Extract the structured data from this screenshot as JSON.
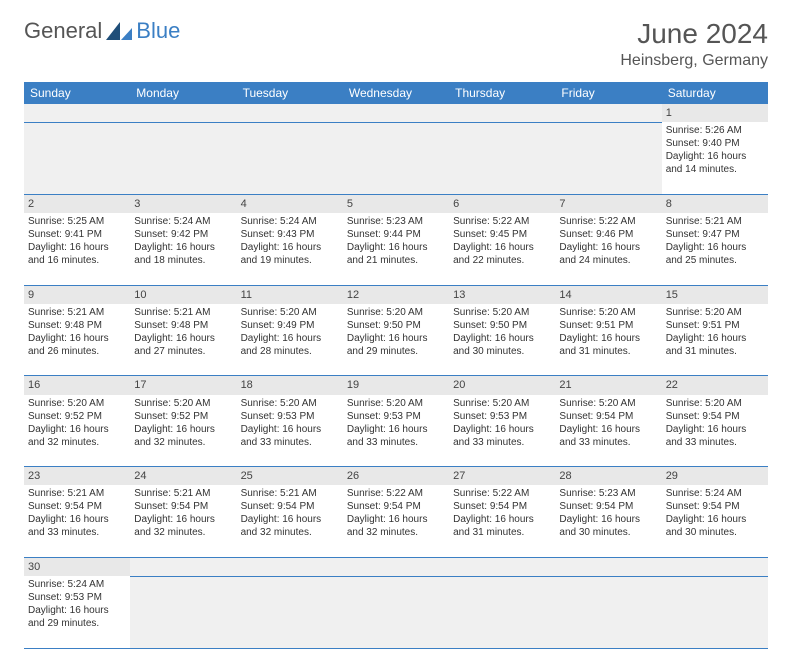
{
  "logo": {
    "textA": "General",
    "textB": "Blue"
  },
  "title": "June 2024",
  "location": "Heinsberg, Germany",
  "colors": {
    "header_bg": "#3b7fc4",
    "header_text": "#ffffff",
    "daynum_bg": "#e8e8e8",
    "empty_bg": "#f0f0f0",
    "border": "#3b7fc4",
    "body_text": "#333333"
  },
  "dayNames": [
    "Sunday",
    "Monday",
    "Tuesday",
    "Wednesday",
    "Thursday",
    "Friday",
    "Saturday"
  ],
  "weeks": [
    [
      null,
      null,
      null,
      null,
      null,
      null,
      {
        "n": "1",
        "sr": "5:26 AM",
        "ss": "9:40 PM",
        "dl": "16 hours and 14 minutes."
      }
    ],
    [
      {
        "n": "2",
        "sr": "5:25 AM",
        "ss": "9:41 PM",
        "dl": "16 hours and 16 minutes."
      },
      {
        "n": "3",
        "sr": "5:24 AM",
        "ss": "9:42 PM",
        "dl": "16 hours and 18 minutes."
      },
      {
        "n": "4",
        "sr": "5:24 AM",
        "ss": "9:43 PM",
        "dl": "16 hours and 19 minutes."
      },
      {
        "n": "5",
        "sr": "5:23 AM",
        "ss": "9:44 PM",
        "dl": "16 hours and 21 minutes."
      },
      {
        "n": "6",
        "sr": "5:22 AM",
        "ss": "9:45 PM",
        "dl": "16 hours and 22 minutes."
      },
      {
        "n": "7",
        "sr": "5:22 AM",
        "ss": "9:46 PM",
        "dl": "16 hours and 24 minutes."
      },
      {
        "n": "8",
        "sr": "5:21 AM",
        "ss": "9:47 PM",
        "dl": "16 hours and 25 minutes."
      }
    ],
    [
      {
        "n": "9",
        "sr": "5:21 AM",
        "ss": "9:48 PM",
        "dl": "16 hours and 26 minutes."
      },
      {
        "n": "10",
        "sr": "5:21 AM",
        "ss": "9:48 PM",
        "dl": "16 hours and 27 minutes."
      },
      {
        "n": "11",
        "sr": "5:20 AM",
        "ss": "9:49 PM",
        "dl": "16 hours and 28 minutes."
      },
      {
        "n": "12",
        "sr": "5:20 AM",
        "ss": "9:50 PM",
        "dl": "16 hours and 29 minutes."
      },
      {
        "n": "13",
        "sr": "5:20 AM",
        "ss": "9:50 PM",
        "dl": "16 hours and 30 minutes."
      },
      {
        "n": "14",
        "sr": "5:20 AM",
        "ss": "9:51 PM",
        "dl": "16 hours and 31 minutes."
      },
      {
        "n": "15",
        "sr": "5:20 AM",
        "ss": "9:51 PM",
        "dl": "16 hours and 31 minutes."
      }
    ],
    [
      {
        "n": "16",
        "sr": "5:20 AM",
        "ss": "9:52 PM",
        "dl": "16 hours and 32 minutes."
      },
      {
        "n": "17",
        "sr": "5:20 AM",
        "ss": "9:52 PM",
        "dl": "16 hours and 32 minutes."
      },
      {
        "n": "18",
        "sr": "5:20 AM",
        "ss": "9:53 PM",
        "dl": "16 hours and 33 minutes."
      },
      {
        "n": "19",
        "sr": "5:20 AM",
        "ss": "9:53 PM",
        "dl": "16 hours and 33 minutes."
      },
      {
        "n": "20",
        "sr": "5:20 AM",
        "ss": "9:53 PM",
        "dl": "16 hours and 33 minutes."
      },
      {
        "n": "21",
        "sr": "5:20 AM",
        "ss": "9:54 PM",
        "dl": "16 hours and 33 minutes."
      },
      {
        "n": "22",
        "sr": "5:20 AM",
        "ss": "9:54 PM",
        "dl": "16 hours and 33 minutes."
      }
    ],
    [
      {
        "n": "23",
        "sr": "5:21 AM",
        "ss": "9:54 PM",
        "dl": "16 hours and 33 minutes."
      },
      {
        "n": "24",
        "sr": "5:21 AM",
        "ss": "9:54 PM",
        "dl": "16 hours and 32 minutes."
      },
      {
        "n": "25",
        "sr": "5:21 AM",
        "ss": "9:54 PM",
        "dl": "16 hours and 32 minutes."
      },
      {
        "n": "26",
        "sr": "5:22 AM",
        "ss": "9:54 PM",
        "dl": "16 hours and 32 minutes."
      },
      {
        "n": "27",
        "sr": "5:22 AM",
        "ss": "9:54 PM",
        "dl": "16 hours and 31 minutes."
      },
      {
        "n": "28",
        "sr": "5:23 AM",
        "ss": "9:54 PM",
        "dl": "16 hours and 30 minutes."
      },
      {
        "n": "29",
        "sr": "5:24 AM",
        "ss": "9:54 PM",
        "dl": "16 hours and 30 minutes."
      }
    ],
    [
      {
        "n": "30",
        "sr": "5:24 AM",
        "ss": "9:53 PM",
        "dl": "16 hours and 29 minutes."
      },
      null,
      null,
      null,
      null,
      null,
      null
    ]
  ],
  "labels": {
    "sunrise": "Sunrise:",
    "sunset": "Sunset:",
    "daylight": "Daylight:"
  }
}
